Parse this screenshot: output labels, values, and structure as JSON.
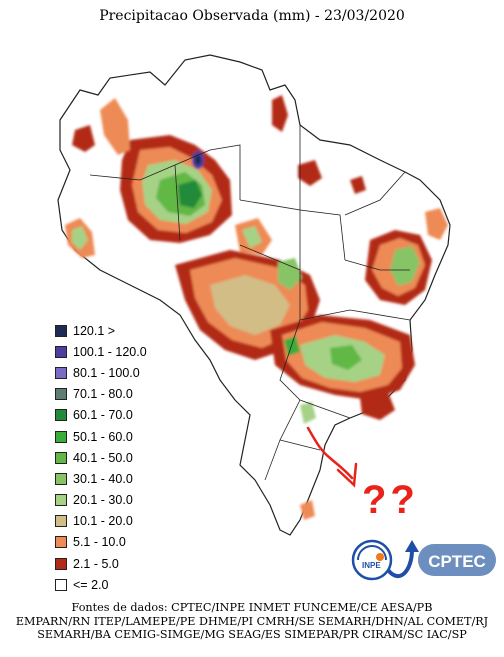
{
  "map": {
    "title": "Precipitacao Observada (mm) - 23/03/2020"
  },
  "legend": [
    {
      "label": "120.1 >",
      "color": "#1f2a55"
    },
    {
      "label": "100.1 - 120.0",
      "color": "#4b3fa0"
    },
    {
      "label": "80.1 - 100.0",
      "color": "#7a6cc4"
    },
    {
      "label": "70.1 - 80.0",
      "color": "#5e7e72"
    },
    {
      "label": "60.1 - 70.0",
      "color": "#228a3a"
    },
    {
      "label": "50.1 - 60.0",
      "color": "#3aac3a"
    },
    {
      "label": "40.1 - 50.0",
      "color": "#62b844"
    },
    {
      "label": "30.1 - 40.0",
      "color": "#86c466"
    },
    {
      "label": "20.1 - 30.0",
      "color": "#a6d286"
    },
    {
      "label": "10.1 - 20.0",
      "color": "#d2bd86"
    },
    {
      "label": "5.1 - 10.0",
      "color": "#ee8a55"
    },
    {
      "label": "2.1 - 5.0",
      "color": "#b22a18"
    },
    {
      "label": "<= 2.0",
      "color": "#ffffff"
    }
  ],
  "sources": [
    "Fontes de dados: CPTEC/INPE INMET FUNCEME/CE AESA/PB",
    "EMPARN/RN ITEP/LAMEPE/PE DHME/PI CMRH/SE SEMARH/DHN/AL COMET/RJ",
    "SEMARH/BA CEMIG-SIMGE/MG SEAG/ES SIMEPAR/PR CIRAM/SC IAC/SP"
  ],
  "logos": {
    "inpe": "INPE",
    "cptec": "CPTEC"
  },
  "annotation": {
    "marks": "??",
    "color": "#e8231a"
  }
}
